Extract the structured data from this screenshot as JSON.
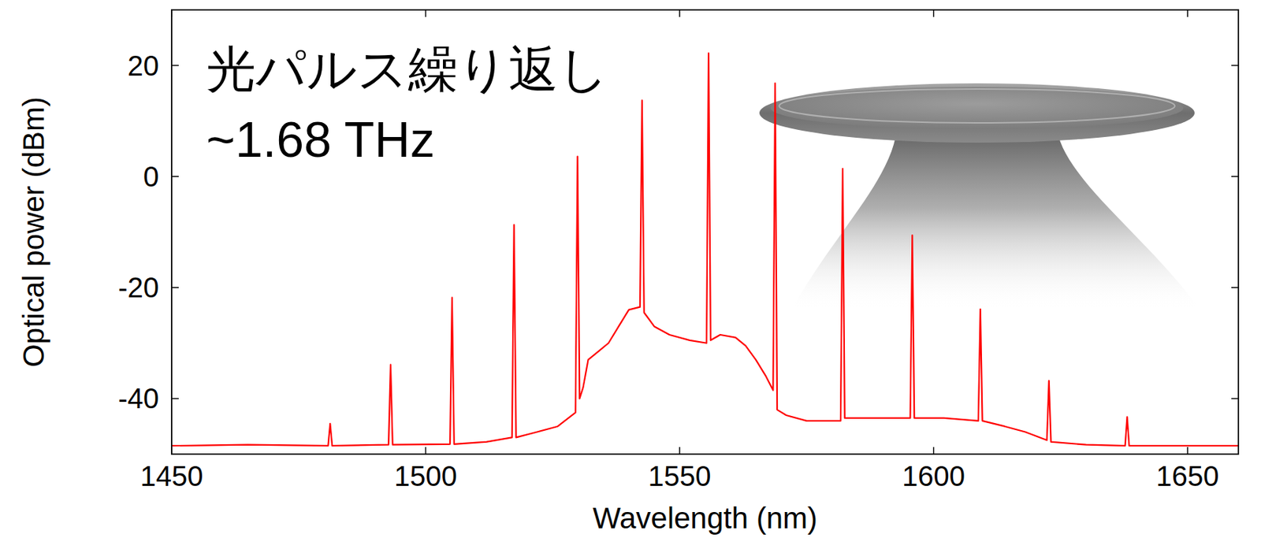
{
  "chart_data": {
    "type": "line",
    "x_label": "Wavelength (nm)",
    "y_label": "Optical power (dBm)",
    "annotations": [
      "光パルス繰り返し",
      "~1.68 THz"
    ],
    "color": "#ff0000",
    "xlim": [
      1450,
      1660
    ],
    "ylim": [
      -50,
      30
    ],
    "xticks": [
      1450,
      1500,
      1550,
      1600,
      1650
    ],
    "yticks": [
      -40,
      -20,
      0,
      20
    ],
    "x": [
      1450,
      1465,
      1480.8,
      1481.2,
      1481.6,
      1492.7,
      1493.1,
      1493.5,
      1504.8,
      1505.2,
      1505.6,
      1512,
      1517.0,
      1517.4,
      1517.8,
      1522,
      1526,
      1529.5,
      1529.9,
      1530.3,
      1531,
      1532,
      1534,
      1536,
      1538,
      1540,
      1542.2,
      1542.6,
      1543.0,
      1545,
      1548,
      1552,
      1555.3,
      1555.7,
      1556.1,
      1558,
      1561,
      1563,
      1565,
      1567,
      1568.4,
      1568.8,
      1569.2,
      1571,
      1575,
      1581.7,
      1582.1,
      1582.5,
      1588,
      1595.4,
      1595.8,
      1596.2,
      1602,
      1608.8,
      1609.2,
      1609.6,
      1614,
      1618,
      1622.3,
      1622.7,
      1623.1,
      1630,
      1637.7,
      1638.1,
      1638.5,
      1660
    ],
    "values": [
      -48.5,
      -48.3,
      -48.5,
      -44.5,
      -48.5,
      -48.3,
      -33.9,
      -48.3,
      -48.2,
      -21.8,
      -48.2,
      -47.8,
      -47,
      -8.7,
      -47,
      -46,
      -45,
      -42.5,
      3.6,
      -40,
      -38,
      -33,
      -31.5,
      -30,
      -27,
      -24,
      -23.5,
      13.7,
      -24.5,
      -27,
      -28.5,
      -29.5,
      -30,
      22.2,
      -29.5,
      -28.5,
      -29,
      -30.5,
      -33,
      -36,
      -38.5,
      16.8,
      -42,
      -43,
      -44,
      -44,
      1.4,
      -43.5,
      -43.5,
      -43.5,
      -10.6,
      -43.5,
      -43.5,
      -44,
      -23.9,
      -44,
      -45,
      -46,
      -47.5,
      -36.8,
      -47.8,
      -48.3,
      -48.5,
      -43.3,
      -48.5,
      -48.5
    ]
  }
}
